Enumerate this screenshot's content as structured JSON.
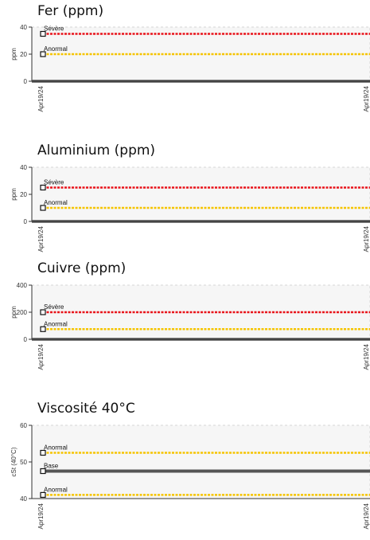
{
  "chart_data": [
    {
      "type": "line",
      "title": "Fer (ppm)",
      "ylabel": "ppm",
      "ylim": [
        0,
        40
      ],
      "yticks": [
        0,
        20,
        40
      ],
      "x_tick_labels": [
        "Apr19/24",
        "Apr19/24"
      ],
      "thresholds": [
        {
          "name": "Sévère",
          "value": 35,
          "color": "#e8141b"
        },
        {
          "name": "Anormal",
          "value": 20,
          "color": "#f5c400"
        }
      ],
      "series": [
        {
          "values": [
            0,
            0
          ]
        }
      ]
    },
    {
      "type": "line",
      "title": "Aluminium (ppm)",
      "ylabel": "ppm",
      "ylim": [
        0,
        40
      ],
      "yticks": [
        0,
        20,
        40
      ],
      "x_tick_labels": [
        "Apr19/24",
        "Apr19/24"
      ],
      "thresholds": [
        {
          "name": "Sévère",
          "value": 25,
          "color": "#e8141b"
        },
        {
          "name": "Anormal",
          "value": 10,
          "color": "#f5c400"
        }
      ],
      "series": [
        {
          "values": [
            0,
            0
          ]
        }
      ]
    },
    {
      "type": "line",
      "title": "Cuivre (ppm)",
      "ylabel": "ppm",
      "ylim": [
        0,
        400
      ],
      "yticks": [
        0,
        200,
        400
      ],
      "x_tick_labels": [
        "Apr19/24",
        "Apr19/24"
      ],
      "thresholds": [
        {
          "name": "Sévère",
          "value": 200,
          "color": "#e8141b"
        },
        {
          "name": "Anormal",
          "value": 75,
          "color": "#f5c400"
        }
      ],
      "series": [
        {
          "values": [
            0,
            0
          ]
        }
      ]
    },
    {
      "type": "line",
      "title": "Viscosité 40°C",
      "ylabel": "cSt (40°C)",
      "ylim": [
        40,
        60
      ],
      "yticks": [
        40,
        50,
        60
      ],
      "x_tick_labels": [
        "Apr19/24",
        "Apr19/24"
      ],
      "thresholds": [
        {
          "name": "Anormal",
          "value": 52.5,
          "color": "#f5c400"
        },
        {
          "name": "Base",
          "value": 47.5,
          "color": "#555555"
        },
        {
          "name": "Anormal",
          "value": 41,
          "color": "#f5c400"
        }
      ],
      "series": []
    }
  ]
}
